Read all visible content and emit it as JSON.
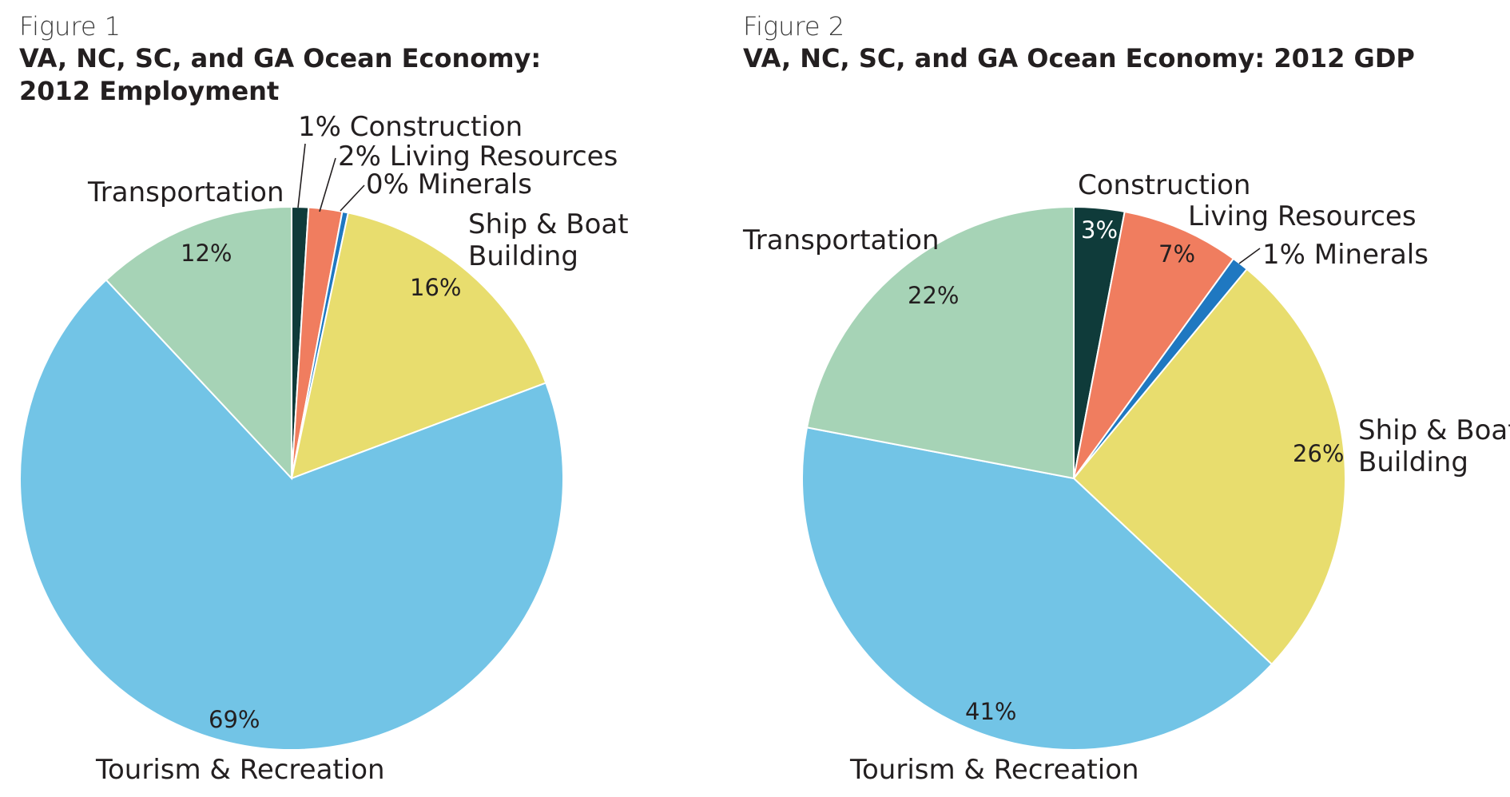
{
  "chart_data": [
    {
      "type": "pie",
      "figure_label": "Figure 1",
      "title_line1": "VA, NC, SC, and GA Ocean Economy:",
      "title_line2": "2012 Employment",
      "slices": [
        {
          "id": "construction",
          "name": "Construction",
          "value": 1,
          "pct_label": "1%",
          "color": "#0f3b3a"
        },
        {
          "id": "living",
          "name": "Living Resources",
          "value": 2,
          "pct_label": "2%",
          "color": "#f07d5f"
        },
        {
          "id": "minerals",
          "name": "Minerals",
          "value": 0,
          "pct_label": "0%",
          "color": "#1f78c1"
        },
        {
          "id": "ship",
          "name": "Ship & Boat Building",
          "value": 16,
          "pct_label": "16%",
          "color": "#e8dd6e"
        },
        {
          "id": "tourism",
          "name": "Tourism & Recreation",
          "value": 69,
          "pct_label": "69%",
          "color": "#72c4e6"
        },
        {
          "id": "transport",
          "name": "Transportation",
          "value": 12,
          "pct_label": "12%",
          "color": "#a6d3b6"
        }
      ],
      "labels": {
        "construction": "1% Construction",
        "living": "2% Living Resources",
        "minerals": "0% Minerals",
        "ship_line1": "Ship & Boat",
        "ship_line2": "Building",
        "tourism": "Tourism & Recreation",
        "transport": "Transportation"
      }
    },
    {
      "type": "pie",
      "figure_label": "Figure 2",
      "title_line1": "VA, NC, SC, and GA Ocean Economy: 2012 GDP",
      "title_line2": "",
      "slices": [
        {
          "id": "construction",
          "name": "Construction",
          "value": 3,
          "pct_label": "3%",
          "color": "#0f3b3a"
        },
        {
          "id": "living",
          "name": "Living Resources",
          "value": 7,
          "pct_label": "7%",
          "color": "#f07d5f"
        },
        {
          "id": "minerals",
          "name": "Minerals",
          "value": 1,
          "pct_label": "1%",
          "color": "#1f78c1"
        },
        {
          "id": "ship",
          "name": "Ship & Boat Building",
          "value": 26,
          "pct_label": "26%",
          "color": "#e8dd6e"
        },
        {
          "id": "tourism",
          "name": "Tourism & Recreation",
          "value": 41,
          "pct_label": "41%",
          "color": "#72c4e6"
        },
        {
          "id": "transport",
          "name": "Transportation",
          "value": 22,
          "pct_label": "22%",
          "color": "#a6d3b6"
        }
      ],
      "labels": {
        "construction": "Construction",
        "living": "Living Resources",
        "minerals": "1%  Minerals",
        "ship_line1": "Ship & Boat",
        "ship_line2": "Building",
        "tourism": "Tourism & Recreation",
        "transport": "Transportation"
      }
    }
  ]
}
